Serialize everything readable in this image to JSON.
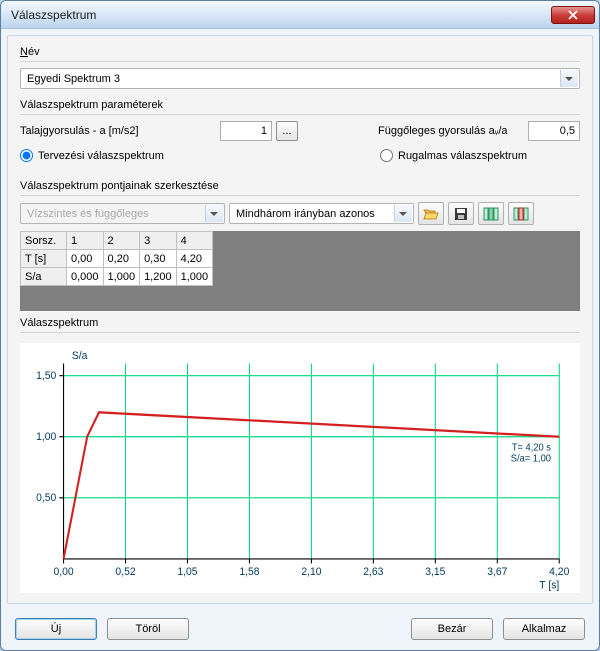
{
  "window": {
    "title": "Válaszspektrum"
  },
  "nev": {
    "label": "Név",
    "value": "Egyedi Spektrum 3"
  },
  "params": {
    "group_label": "Válaszspektrum paraméterek",
    "accel_label": "Talajgyorsulás - a [m/s2]",
    "accel_value": "1",
    "vert_label": "Függőleges gyorsulás aᵥ/a",
    "vert_value": "0,5",
    "radio_design": "Tervezési válaszspektrum",
    "radio_elastic": "Rugalmas válaszspektrum"
  },
  "points": {
    "group_label": "Válaszspektrum pontjainak szerkesztése",
    "dd1": "Vízszintes és függőleges",
    "dd2": "Mindhárom irányban azonos",
    "headers": [
      "Sorsz.",
      "1",
      "2",
      "3",
      "4"
    ],
    "row_t": [
      "T [s]",
      "0,00",
      "0,20",
      "0,30",
      "4,20"
    ],
    "row_sa": [
      "S/a",
      "0,000",
      "1,000",
      "1,200",
      "1,000"
    ]
  },
  "chart": {
    "group_label": "Válaszspektrum",
    "y_label": "S/a",
    "x_label": "T [s]",
    "x_ticks": [
      "0,00",
      "0,52",
      "1,05",
      "1,58",
      "2,10",
      "2,63",
      "3,15",
      "3,67",
      "4,20"
    ],
    "y_ticks": [
      "1,50",
      "1,00",
      "0,50"
    ],
    "annotation1": "T= 4,20 s",
    "annotation2": "S/a= 1,00",
    "data_x": [
      0.0,
      0.2,
      0.3,
      4.2
    ],
    "data_y": [
      0.0,
      1.0,
      1.2,
      1.0
    ],
    "xlim": [
      0,
      4.2
    ],
    "ylim": [
      0,
      1.6
    ],
    "line_color": "#d42020",
    "line_width": 2,
    "grid_color": "#00d780",
    "axis_color": "#000000",
    "background": "#ffffff",
    "text_color": "#003a5c"
  },
  "buttons": {
    "new": "Új",
    "delete": "Töröl",
    "close": "Bezár",
    "apply": "Alkalmaz",
    "ellipsis": "..."
  }
}
